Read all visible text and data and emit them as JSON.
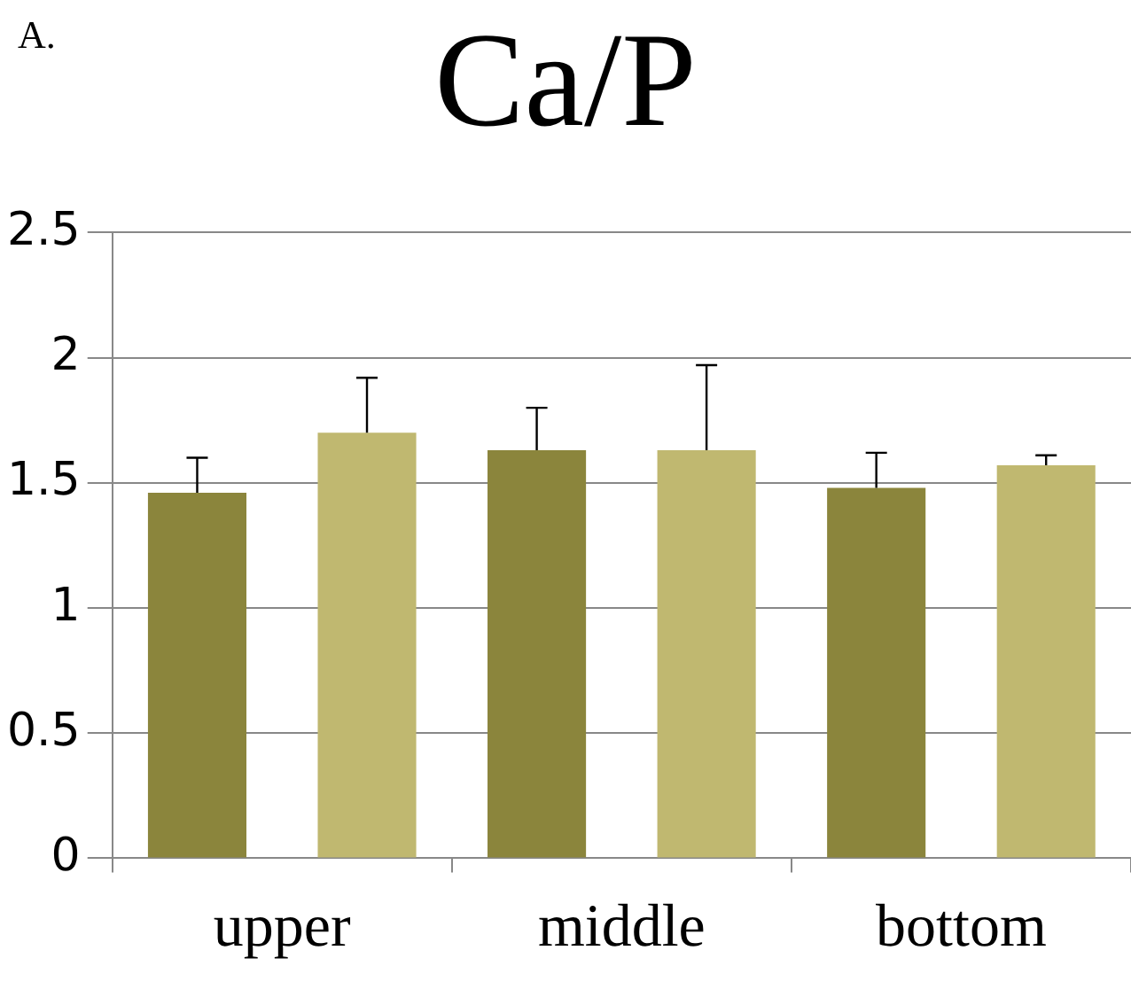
{
  "chart_data": {
    "type": "bar",
    "title": "Ca/P",
    "annotations": [
      "A."
    ],
    "categories": [
      "upper",
      "middle",
      "bottom"
    ],
    "series": [
      {
        "color": "#8b853c",
        "values": [
          1.46,
          1.63,
          1.48
        ],
        "errors": [
          [
            1.46,
            1.6
          ],
          [
            1.63,
            1.8
          ],
          [
            1.48,
            1.62
          ]
        ]
      },
      {
        "color": "#c0b870",
        "values": [
          1.7,
          1.63,
          1.57
        ],
        "errors": [
          [
            1.7,
            1.92
          ],
          [
            1.63,
            1.97
          ],
          [
            1.57,
            1.61
          ]
        ]
      }
    ],
    "ylim": [
      0,
      2.5
    ],
    "yticks": [
      0,
      0.5,
      1,
      1.5,
      2,
      2.5
    ],
    "grid": "y",
    "legend": false
  }
}
